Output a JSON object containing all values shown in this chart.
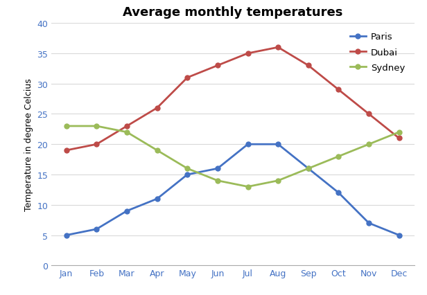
{
  "title": "Average monthly temperatures",
  "ylabel": "Temperature in degree Celcius",
  "months": [
    "Jan",
    "Feb",
    "Mar",
    "Apr",
    "May",
    "Jun",
    "Jul",
    "Aug",
    "Sep",
    "Oct",
    "Nov",
    "Dec"
  ],
  "series": {
    "Paris": {
      "values": [
        5,
        6,
        9,
        11,
        15,
        16,
        20,
        20,
        16,
        12,
        7,
        5
      ],
      "color": "#4472C4",
      "marker": "o"
    },
    "Dubai": {
      "values": [
        19,
        20,
        23,
        26,
        31,
        33,
        35,
        36,
        33,
        29,
        25,
        21
      ],
      "color": "#BE4B48",
      "marker": "o"
    },
    "Sydney": {
      "values": [
        23,
        23,
        22,
        19,
        16,
        14,
        13,
        14,
        16,
        18,
        20,
        22
      ],
      "color": "#9BBB59",
      "marker": "o"
    }
  },
  "ylim": [
    0,
    40
  ],
  "yticks": [
    0,
    5,
    10,
    15,
    20,
    25,
    30,
    35,
    40
  ],
  "tick_color": "#4472C4",
  "background_color": "#FFFFFF",
  "grid_color": "#D9D9D9",
  "title_fontsize": 13,
  "axis_label_fontsize": 9,
  "tick_fontsize": 9,
  "legend_order": [
    "Paris",
    "Dubai",
    "Sydney"
  ]
}
